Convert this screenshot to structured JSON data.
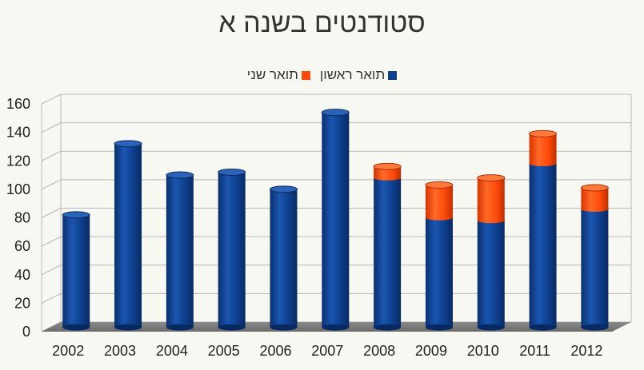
{
  "chart_data": {
    "type": "bar",
    "stacked": true,
    "title": "סטודנטים בשנה א",
    "xlabel": "",
    "ylabel": "",
    "ylim": [
      0,
      160
    ],
    "yticks": [
      0,
      20,
      40,
      60,
      80,
      100,
      120,
      140,
      160
    ],
    "grid": true,
    "legend_position": "top",
    "categories": [
      "2002",
      "2003",
      "2004",
      "2005",
      "2006",
      "2007",
      "2008",
      "2009",
      "2010",
      "2011",
      "2012"
    ],
    "series": [
      {
        "name": "תואר ראשון",
        "color": "#0e3f8c",
        "values": [
          79,
          129,
          107,
          109,
          97,
          151,
          105,
          77,
          75,
          115,
          83
        ]
      },
      {
        "name": "תואר שני",
        "color": "#ff4a0a",
        "values": [
          0,
          0,
          0,
          0,
          0,
          0,
          8,
          23,
          30,
          21,
          15
        ]
      }
    ]
  }
}
